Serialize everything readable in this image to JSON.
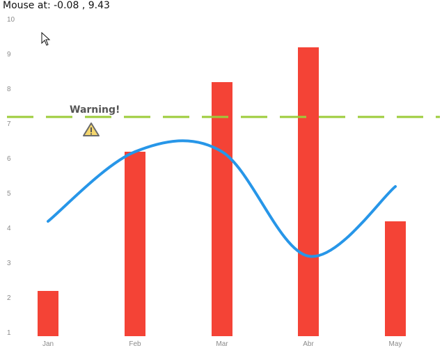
{
  "mouse": {
    "label": "Mouse at:",
    "x": "-0.08",
    "y": "9.43"
  },
  "colors": {
    "bar": "#f44336",
    "line": "#2796e8",
    "threshold": "#9ccc3a",
    "warning_fill": "#f5d76e",
    "warning_stroke": "#6b6b6b"
  },
  "icons": {
    "cursor": "arrow-pointer-icon",
    "warning": "warning-triangle-icon"
  },
  "chart_data": {
    "type": "bar",
    "categories": [
      "Jan",
      "Feb",
      "Mar",
      "Abr",
      "May"
    ],
    "series": [
      {
        "type": "bar",
        "values": [
          2.2,
          6.2,
          8.2,
          9.2,
          4.2
        ]
      },
      {
        "type": "line",
        "smooth": true,
        "values": [
          4.2,
          6.2,
          6.2,
          3.2,
          5.2
        ]
      }
    ],
    "threshold": {
      "value": 7.2,
      "style": "dashed",
      "label": "Warning!"
    },
    "ylim": [
      1,
      10
    ],
    "yticks": [
      1,
      2,
      3,
      4,
      5,
      6,
      7,
      8,
      9,
      10
    ],
    "grid": false,
    "title": "",
    "xlabel": "",
    "ylabel": ""
  }
}
